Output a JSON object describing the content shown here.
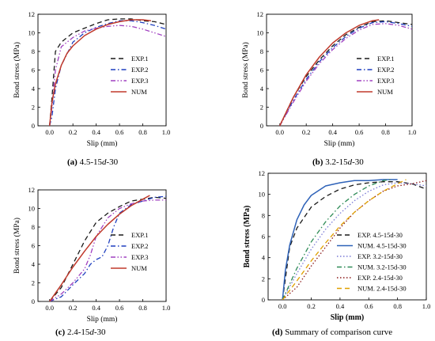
{
  "figure": {
    "panels": [
      {
        "id": "a",
        "caption": {
          "letter": "(a)",
          "text": "4.5-15",
          "italic": "d",
          "suffix": "-30"
        },
        "legend": [
          "EXP.1",
          "EXP.2",
          "EXP.3",
          "NUM"
        ]
      },
      {
        "id": "b",
        "caption": {
          "letter": "(b)",
          "text": "3.2-15",
          "italic": "d",
          "suffix": "-30"
        },
        "legend": [
          "EXP.1",
          "EXP.2",
          "EXP.3",
          "NUM"
        ]
      },
      {
        "id": "c",
        "caption": {
          "letter": "(c)",
          "text": "2.4-15",
          "italic": "d",
          "suffix": "-30"
        },
        "legend": [
          "EXP.1",
          "EXP.2",
          "EXP.3",
          "NUM"
        ]
      },
      {
        "id": "d",
        "caption": {
          "letter": "(d)",
          "text": "Summary of comparison curve",
          "italic": "",
          "suffix": ""
        },
        "legend": [
          "EXP. 4.5-15d-30",
          "NUM. 4.5-15d-30",
          "EXP. 3.2-15d-30",
          "NUM. 3.2-15d-30",
          "EXP. 2.4-15d-30",
          "NUM. 2.4-15d-30"
        ]
      }
    ]
  },
  "chart_data": [
    {
      "type": "line",
      "xlabel": "Slip (mm)",
      "ylabel": "Bond stress (MPa)",
      "xlim": [
        -0.1,
        1.0
      ],
      "ylim": [
        0,
        12
      ],
      "xticks": [
        "0.0",
        "0.2",
        "0.4",
        "0.6",
        "0.8",
        "1.0"
      ],
      "yticks": [
        "0",
        "2",
        "4",
        "6",
        "8",
        "10",
        "12"
      ],
      "legend_position": "center-right",
      "series": [
        {
          "name": "EXP.1",
          "style": "dash",
          "color": "#1a1a1a",
          "x": [
            0.0,
            0.02,
            0.05,
            0.1,
            0.2,
            0.3,
            0.4,
            0.5,
            0.6,
            0.7,
            0.8,
            0.9,
            1.0
          ],
          "y": [
            0.0,
            3.0,
            8.0,
            9.0,
            10.0,
            10.5,
            11.0,
            11.4,
            11.5,
            11.5,
            11.3,
            11.2,
            10.9
          ]
        },
        {
          "name": "EXP.2",
          "style": "dashdot",
          "color": "#1f3fbf",
          "x": [
            0.0,
            0.02,
            0.05,
            0.1,
            0.2,
            0.3,
            0.4,
            0.5,
            0.6,
            0.7,
            0.8,
            0.9,
            1.0
          ],
          "y": [
            0.0,
            1.0,
            4.0,
            6.5,
            9.0,
            10.0,
            10.6,
            11.0,
            11.3,
            11.3,
            11.1,
            10.8,
            10.4
          ]
        },
        {
          "name": "EXP.3",
          "style": "dashdotdot",
          "color": "#a040c0",
          "x": [
            0.0,
            0.02,
            0.05,
            0.1,
            0.2,
            0.3,
            0.4,
            0.5,
            0.6,
            0.7,
            0.8,
            0.9,
            1.0
          ],
          "y": [
            0.0,
            2.0,
            6.0,
            8.5,
            9.5,
            10.2,
            10.5,
            10.7,
            10.8,
            10.7,
            10.4,
            10.0,
            9.6
          ]
        },
        {
          "name": "NUM",
          "style": "solid",
          "color": "#c0392b",
          "x": [
            0.0,
            0.02,
            0.05,
            0.1,
            0.15,
            0.2,
            0.3,
            0.4,
            0.5,
            0.6,
            0.7,
            0.8,
            0.87
          ],
          "y": [
            0.0,
            2.5,
            4.5,
            6.5,
            7.8,
            8.6,
            9.7,
            10.4,
            10.9,
            11.2,
            11.4,
            11.4,
            11.3
          ]
        }
      ]
    },
    {
      "type": "line",
      "xlabel": "Slip (mm)",
      "ylabel": "Bond stress (MPa)",
      "xlim": [
        -0.1,
        1.0
      ],
      "ylim": [
        0,
        12
      ],
      "xticks": [
        "0.0",
        "0.2",
        "0.4",
        "0.6",
        "0.8",
        "1.0"
      ],
      "yticks": [
        "0",
        "2",
        "4",
        "6",
        "8",
        "10",
        "12"
      ],
      "legend_position": "center-right",
      "series": [
        {
          "name": "EXP.1",
          "style": "dash",
          "color": "#1a1a1a",
          "x": [
            0.0,
            0.1,
            0.2,
            0.3,
            0.4,
            0.5,
            0.6,
            0.7,
            0.8,
            0.9,
            1.0
          ],
          "y": [
            0.0,
            3.0,
            5.3,
            7.1,
            8.6,
            9.8,
            10.6,
            11.2,
            11.3,
            11.1,
            10.9
          ]
        },
        {
          "name": "EXP.2",
          "style": "dashdot",
          "color": "#1f3fbf",
          "x": [
            0.0,
            0.1,
            0.2,
            0.3,
            0.4,
            0.5,
            0.6,
            0.7,
            0.8,
            0.9,
            1.0
          ],
          "y": [
            0.0,
            2.7,
            5.0,
            6.9,
            8.4,
            9.6,
            10.5,
            11.1,
            11.2,
            11.0,
            10.7
          ]
        },
        {
          "name": "EXP.3",
          "style": "dashdotdot",
          "color": "#a040c0",
          "x": [
            0.0,
            0.1,
            0.2,
            0.3,
            0.4,
            0.5,
            0.6,
            0.7,
            0.8,
            0.9,
            1.0
          ],
          "y": [
            0.0,
            2.5,
            4.8,
            6.7,
            8.2,
            9.4,
            10.3,
            10.9,
            11.0,
            10.8,
            10.4
          ]
        },
        {
          "name": "NUM",
          "style": "solid",
          "color": "#c0392b",
          "x": [
            0.0,
            0.1,
            0.2,
            0.3,
            0.4,
            0.5,
            0.6,
            0.7,
            0.75
          ],
          "y": [
            0.0,
            3.0,
            5.5,
            7.4,
            8.9,
            10.0,
            10.8,
            11.3,
            11.4
          ]
        }
      ]
    },
    {
      "type": "line",
      "xlabel": "Slip (mm)",
      "ylabel": "Bond stress (MPa)",
      "xlim": [
        -0.1,
        1.0
      ],
      "ylim": [
        0,
        12
      ],
      "xticks": [
        "0.0",
        "0.2",
        "0.4",
        "0.6",
        "0.8",
        "1.0"
      ],
      "yticks": [
        "0",
        "2",
        "4",
        "6",
        "8",
        "10",
        "12"
      ],
      "legend_position": "center-right",
      "series": [
        {
          "name": "EXP.1",
          "style": "dash",
          "color": "#1a1a1a",
          "x": [
            0.0,
            0.1,
            0.2,
            0.3,
            0.4,
            0.5,
            0.6,
            0.7,
            0.8,
            0.9,
            1.0
          ],
          "y": [
            0.0,
            1.5,
            4.0,
            6.5,
            8.5,
            9.5,
            10.2,
            10.8,
            11.0,
            11.2,
            11.1
          ]
        },
        {
          "name": "EXP.2",
          "style": "dashdot",
          "color": "#1f3fbf",
          "x": [
            0.0,
            0.1,
            0.2,
            0.3,
            0.35,
            0.4,
            0.45,
            0.5,
            0.55,
            0.6,
            0.7,
            0.8,
            0.9,
            1.0
          ],
          "y": [
            0.0,
            0.5,
            1.8,
            3.0,
            4.0,
            4.5,
            4.8,
            6.0,
            8.0,
            9.5,
            10.4,
            10.8,
            11.2,
            11.3
          ]
        },
        {
          "name": "EXP.3",
          "style": "dashdotdot",
          "color": "#a040c0",
          "x": [
            0.0,
            0.1,
            0.2,
            0.3,
            0.35,
            0.4,
            0.5,
            0.6,
            0.7,
            0.8,
            0.9,
            1.0
          ],
          "y": [
            0.0,
            0.8,
            2.0,
            3.5,
            5.0,
            7.0,
            9.0,
            10.0,
            10.5,
            10.8,
            10.9,
            10.9
          ]
        },
        {
          "name": "NUM",
          "style": "solid",
          "color": "#c0392b",
          "x": [
            0.0,
            0.1,
            0.2,
            0.3,
            0.4,
            0.5,
            0.6,
            0.7,
            0.8,
            0.86
          ],
          "y": [
            0.0,
            1.8,
            3.7,
            5.4,
            7.0,
            8.3,
            9.4,
            10.3,
            11.0,
            11.4
          ]
        }
      ]
    },
    {
      "type": "line",
      "xlabel": "Slip (mm)",
      "ylabel": "Bond stress (MPa)",
      "xlim": [
        -0.1,
        1.0
      ],
      "ylim": [
        0,
        12
      ],
      "xticks": [
        "0.0",
        "0.2",
        "0.4",
        "0.6",
        "0.8",
        "1.0"
      ],
      "yticks": [
        "0",
        "2",
        "4",
        "6",
        "8",
        "10",
        "12"
      ],
      "legend_position": "bottom-right",
      "series": [
        {
          "name": "EXP. 4.5-15d-30",
          "style": "dash",
          "color": "#1a1a1a",
          "x": [
            0.0,
            0.05,
            0.1,
            0.2,
            0.3,
            0.4,
            0.5,
            0.6,
            0.7,
            0.8,
            0.9,
            1.0
          ],
          "y": [
            0.0,
            5.0,
            6.8,
            8.8,
            9.8,
            10.5,
            10.9,
            11.1,
            11.2,
            11.2,
            11.0,
            10.5
          ]
        },
        {
          "name": "NUM. 4.5-15d-30",
          "style": "solid",
          "color": "#2e62b8",
          "x": [
            0.0,
            0.02,
            0.05,
            0.1,
            0.15,
            0.2,
            0.3,
            0.4,
            0.5,
            0.6,
            0.7,
            0.8
          ],
          "y": [
            0.0,
            2.8,
            5.2,
            7.6,
            9.0,
            9.9,
            10.8,
            11.1,
            11.3,
            11.3,
            11.4,
            11.4
          ]
        },
        {
          "name": "EXP. 3.2-15d-30",
          "style": "dot",
          "color": "#7a7ad6",
          "x": [
            0.0,
            0.1,
            0.2,
            0.3,
            0.4,
            0.5,
            0.6,
            0.7,
            0.8,
            0.9,
            1.0
          ],
          "y": [
            0.0,
            2.5,
            4.8,
            6.7,
            8.2,
            9.4,
            10.3,
            10.9,
            11.1,
            11.0,
            10.8
          ]
        },
        {
          "name": "NUM. 3.2-15d-30",
          "style": "dashdot",
          "color": "#2e8b57",
          "x": [
            0.0,
            0.1,
            0.2,
            0.3,
            0.4,
            0.5,
            0.6,
            0.7,
            0.75
          ],
          "y": [
            0.0,
            3.0,
            5.5,
            7.4,
            8.9,
            10.0,
            10.8,
            11.3,
            11.4
          ]
        },
        {
          "name": "EXP. 2.4-15d-30",
          "style": "dot",
          "color": "#8b1a1a",
          "x": [
            0.0,
            0.1,
            0.2,
            0.3,
            0.4,
            0.5,
            0.6,
            0.7,
            0.8,
            0.9,
            1.0
          ],
          "y": [
            0.0,
            1.2,
            3.2,
            5.0,
            6.8,
            8.3,
            9.4,
            10.3,
            10.8,
            11.0,
            11.3
          ]
        },
        {
          "name": "NUM. 2.4-15d-30",
          "style": "dash",
          "color": "#e0a000",
          "x": [
            0.0,
            0.1,
            0.2,
            0.3,
            0.4,
            0.5,
            0.6,
            0.7,
            0.8,
            0.86
          ],
          "y": [
            0.0,
            1.8,
            3.7,
            5.4,
            7.0,
            8.3,
            9.4,
            10.3,
            11.0,
            11.4
          ]
        }
      ]
    }
  ]
}
